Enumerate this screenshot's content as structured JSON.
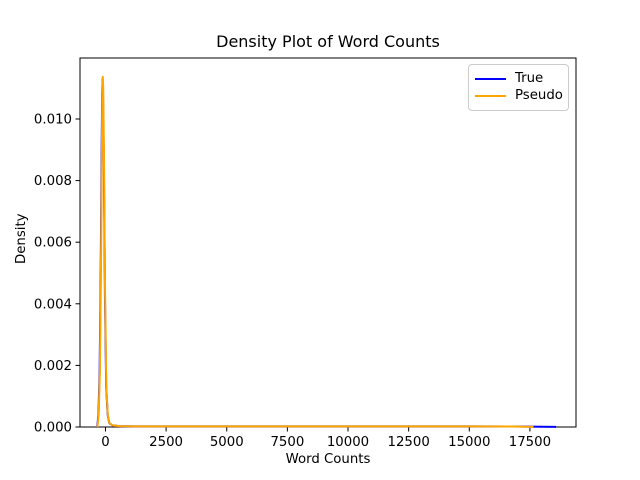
{
  "chart_data": {
    "type": "line",
    "title": "Density Plot of Word Counts",
    "xlabel": "Word Counts",
    "ylabel": "Density",
    "xlim": [
      -1050,
      19400
    ],
    "ylim": [
      0,
      0.01198
    ],
    "x_ticks": [
      0,
      2500,
      5000,
      7500,
      10000,
      12500,
      15000,
      17500
    ],
    "x_tick_labels": [
      "0",
      "2500",
      "5000",
      "7500",
      "10000",
      "12500",
      "15000",
      "17500"
    ],
    "y_ticks": [
      0.0,
      0.002,
      0.004,
      0.006,
      0.008,
      0.01
    ],
    "y_tick_labels": [
      "0.000",
      "0.002",
      "0.004",
      "0.006",
      "0.008",
      "0.010"
    ],
    "grid": false,
    "background_color": "#ffffff",
    "spine_color": "#000000",
    "legend": {
      "position": "upper right",
      "items": [
        {
          "label": "True",
          "color": "#0000ff"
        },
        {
          "label": "Pseudo",
          "color": "#ffa500"
        }
      ]
    },
    "series": [
      {
        "name": "True",
        "color": "#0000ff",
        "points": [
          [
            -340,
            0.0
          ],
          [
            -290,
            0.0004
          ],
          [
            -240,
            0.0018
          ],
          [
            -195,
            0.0052
          ],
          [
            -160,
            0.0088
          ],
          [
            -135,
            0.0108
          ],
          [
            -120,
            0.0113
          ],
          [
            -100,
            0.0108
          ],
          [
            -65,
            0.0085
          ],
          [
            -20,
            0.0042
          ],
          [
            30,
            0.0013
          ],
          [
            90,
            0.0004
          ],
          [
            160,
            0.00012
          ],
          [
            300,
            5e-05
          ],
          [
            600,
            3e-05
          ],
          [
            1200,
            2e-05
          ],
          [
            2500,
            2e-05
          ],
          [
            5000,
            2e-05
          ],
          [
            7500,
            2e-05
          ],
          [
            10000,
            2e-05
          ],
          [
            12500,
            2e-05
          ],
          [
            15000,
            2e-05
          ],
          [
            17000,
            1.5e-05
          ],
          [
            18000,
            1e-05
          ],
          [
            18580,
            5e-06
          ]
        ]
      },
      {
        "name": "Pseudo",
        "color": "#ffa500",
        "points": [
          [
            -330,
            0.0
          ],
          [
            -280,
            0.0004
          ],
          [
            -230,
            0.0018
          ],
          [
            -185,
            0.0052
          ],
          [
            -150,
            0.0088
          ],
          [
            -128,
            0.011
          ],
          [
            -112,
            0.01137
          ],
          [
            -92,
            0.011
          ],
          [
            -60,
            0.0086
          ],
          [
            -15,
            0.0043
          ],
          [
            35,
            0.0013
          ],
          [
            95,
            0.0004
          ],
          [
            165,
            0.00012
          ],
          [
            300,
            5e-05
          ],
          [
            600,
            3e-05
          ],
          [
            1200,
            2e-05
          ],
          [
            2500,
            2e-05
          ],
          [
            5000,
            2e-05
          ],
          [
            7500,
            2e-05
          ],
          [
            10000,
            2e-05
          ],
          [
            12500,
            2e-05
          ],
          [
            15000,
            2e-05
          ],
          [
            16800,
            1.5e-05
          ],
          [
            17650,
            5e-06
          ]
        ]
      }
    ]
  }
}
